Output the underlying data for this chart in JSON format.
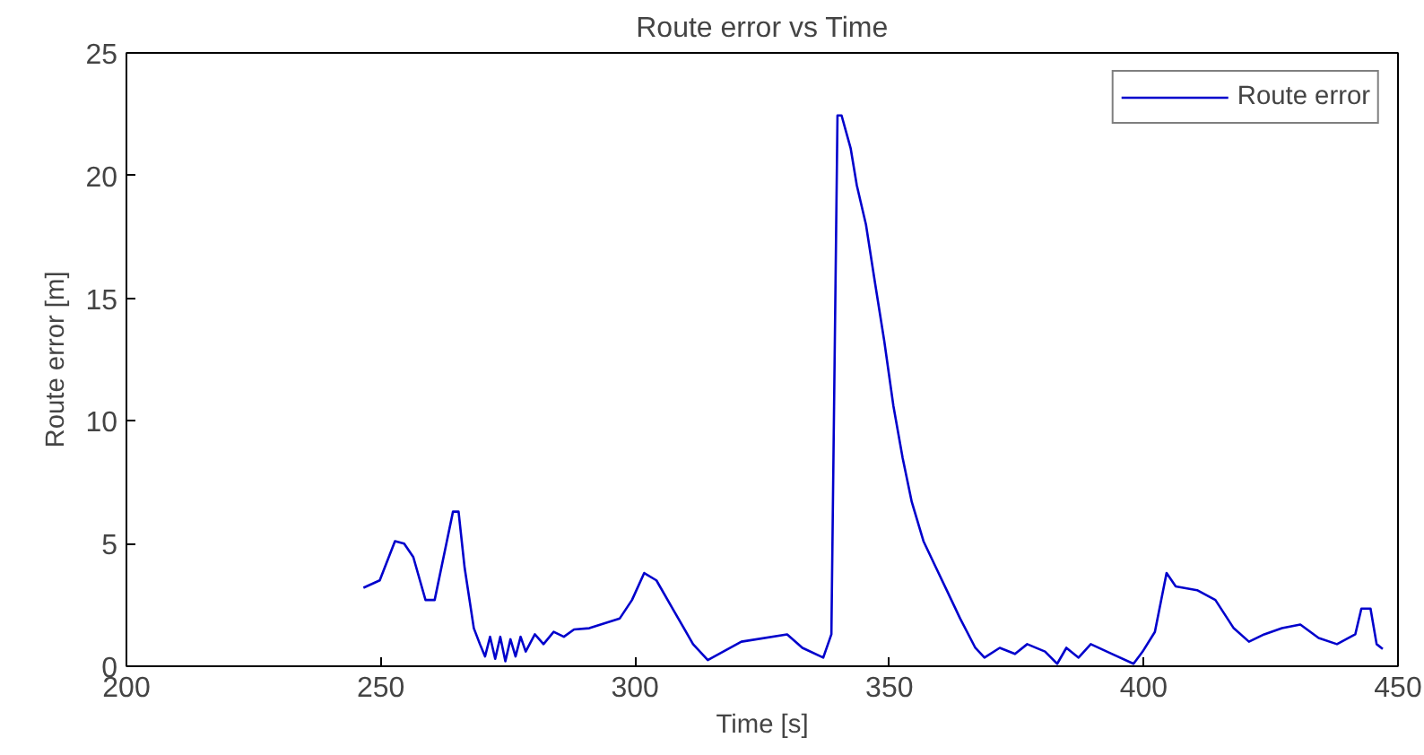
{
  "chart_data": {
    "type": "line",
    "title": "Route error vs Time",
    "xlabel": "Time [s]",
    "ylabel": "Route error [m]",
    "xlim": [
      200,
      450
    ],
    "xticks": [
      200,
      250,
      300,
      350,
      400,
      450
    ],
    "ylim": [
      0,
      25
    ],
    "yticks": [
      0,
      5,
      10,
      15,
      20,
      25
    ],
    "grid": false,
    "legend": "top right",
    "series": [
      {
        "name": "Route error",
        "color": "#0000cc",
        "x": [
          246.6,
          249.8,
          252.8,
          254.6,
          256.4,
          258.8,
          260.6,
          263.0,
          264.2,
          265.3,
          266.5,
          268.3,
          269.5,
          270.5,
          271.5,
          272.5,
          273.5,
          274.5,
          275.5,
          276.5,
          277.5,
          278.5,
          280.3,
          282,
          284,
          286,
          288,
          291.0,
          297.0,
          299.4,
          301.8,
          304.2,
          307.8,
          311.4,
          314.3,
          320.9,
          329.9,
          332.9,
          337.0,
          338.6,
          339.8,
          340.6,
          342.4,
          343.6,
          345.4,
          347.2,
          349.0,
          350.8,
          352.6,
          354.4,
          356.7,
          359.1,
          361.5,
          363.9,
          366.9,
          368.7,
          371.7,
          374.7,
          377.1,
          380.6,
          383.0,
          384.8,
          387.2,
          389.6,
          393.8,
          398.0,
          399.8,
          402.2,
          404.5,
          406.3,
          410.5,
          414.1,
          417.7,
          420.7,
          423.7,
          427.2,
          430.8,
          434.4,
          438.0,
          441.6,
          442.8,
          444.6,
          445.8,
          447.0
        ],
        "values": [
          3.2,
          3.5,
          5.1,
          5.0,
          4.45,
          2.7,
          2.7,
          5.1,
          6.3,
          6.3,
          4.0,
          1.55,
          0.9,
          0.4,
          1.2,
          0.3,
          1.2,
          0.2,
          1.1,
          0.4,
          1.2,
          0.6,
          1.3,
          0.9,
          1.4,
          1.2,
          1.5,
          1.55,
          1.95,
          2.7,
          3.8,
          3.5,
          2.2,
          0.9,
          0.25,
          1.0,
          1.3,
          0.75,
          0.35,
          1.3,
          22.45,
          22.45,
          21.1,
          19.6,
          18.0,
          15.6,
          13.25,
          10.6,
          8.5,
          6.7,
          5.1,
          4.05,
          3.0,
          1.95,
          0.75,
          0.35,
          0.75,
          0.5,
          0.9,
          0.6,
          0.1,
          0.75,
          0.35,
          0.9,
          0.5,
          0.1,
          0.6,
          1.4,
          3.8,
          3.25,
          3.1,
          2.7,
          1.55,
          1.0,
          1.3,
          1.55,
          1.7,
          1.15,
          0.9,
          1.3,
          2.35,
          2.35,
          0.9,
          0.7
        ]
      }
    ]
  }
}
